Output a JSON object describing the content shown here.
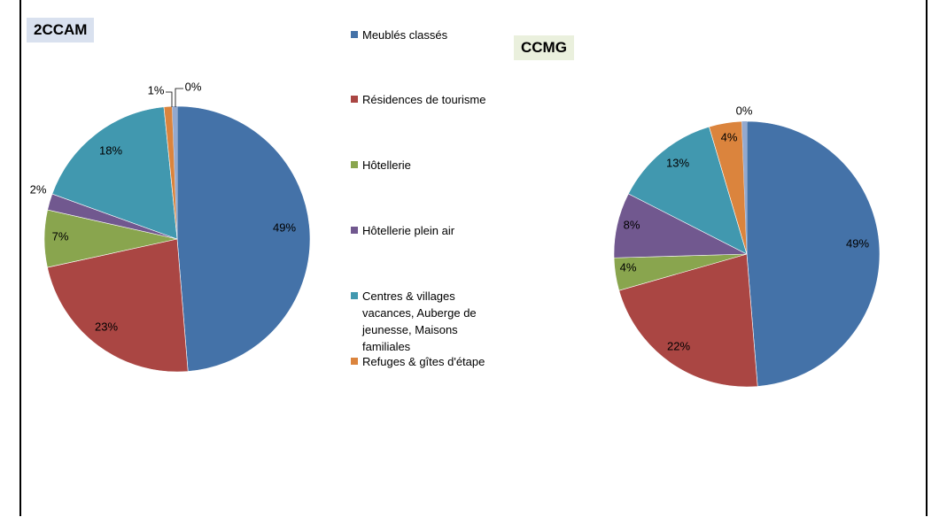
{
  "chart_data": [
    {
      "type": "pie",
      "title": "2CCAM",
      "categories": [
        "Meublés classés",
        "Résidences de tourisme",
        "Hôtellerie",
        "Hôtellerie  plein air",
        "Centres & villages vacances, Auberge de jeunesse, Maisons familiales",
        "Refuges & gîtes d'étape"
      ],
      "values": [
        49,
        23,
        7,
        2,
        18,
        1
      ],
      "labels": [
        "49%",
        "23%",
        "7%",
        "2%",
        "18%",
        "1%",
        "0%"
      ],
      "zero_label": "0%"
    },
    {
      "type": "pie",
      "title": "CCMG",
      "categories": [
        "Meublés classés",
        "Résidences de tourisme",
        "Hôtellerie",
        "Hôtellerie  plein air",
        "Centres & villages vacances, Auberge de jeunesse, Maisons familiales",
        "Refuges & gîtes d'étape"
      ],
      "values": [
        49,
        22,
        4,
        8,
        13,
        4
      ],
      "labels": [
        "49%",
        "22%",
        "4%",
        "8%",
        "13%",
        "4%",
        "0%"
      ],
      "zero_label": "0%"
    }
  ],
  "legend": [
    {
      "label": "Meublés classés",
      "color": "#4472a8"
    },
    {
      "label": "Résidences de tourisme",
      "color": "#aa4643"
    },
    {
      "label": "Hôtellerie",
      "color": "#89a54e"
    },
    {
      "label": "Hôtellerie  plein air",
      "color": "#71588f"
    },
    {
      "label": "Centres & villages vacances, Auberge de jeunesse, Maisons familiales",
      "color": "#4198af"
    },
    {
      "label": "Refuges & gîtes d'étape",
      "color": "#db843d"
    }
  ],
  "extra_slice_color": "#93a9cf"
}
